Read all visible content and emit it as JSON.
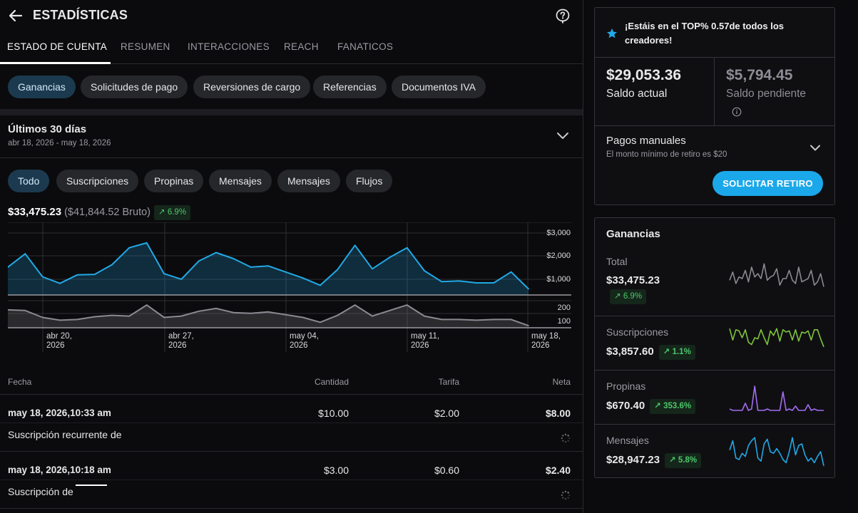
{
  "header": {
    "title": "ESTADÍSTICAS"
  },
  "tabs": [
    {
      "label": "ESTADO DE CUENTA"
    },
    {
      "label": "RESUMEN"
    },
    {
      "label": "INTERACCIONES"
    },
    {
      "label": "REACH"
    },
    {
      "label": "FANATICOS"
    }
  ],
  "sections": [
    {
      "label": "Ganancias",
      "selected": true
    },
    {
      "label": "Solicitudes de pago"
    },
    {
      "label": "Reversiones de cargo"
    },
    {
      "label": "Referencias"
    },
    {
      "label": "Documentos IVA"
    }
  ],
  "period": {
    "title": "Últimos 30 días",
    "range": "abr 18, 2026 - may 18, 2026"
  },
  "filters": [
    {
      "label": "Todo",
      "selected": true
    },
    {
      "label": "Suscripciones"
    },
    {
      "label": "Propinas"
    },
    {
      "label": "Mensajes"
    },
    {
      "label": "Mensajes"
    },
    {
      "label": "Flujos"
    }
  ],
  "summary": {
    "net": "$33,475.23",
    "gross": "($41,844.52 Bruto)",
    "change": "6.9%"
  },
  "chart_data": {
    "type": "area",
    "upper": {
      "y_ticks": [
        "$3,000",
        "$2,000",
        "$1,000"
      ],
      "ylim": [
        0,
        3000
      ],
      "values": [
        1150,
        1700,
        750,
        480,
        830,
        850,
        1250,
        1950,
        2150,
        880,
        650,
        1400,
        1750,
        1500,
        1150,
        1200,
        950,
        700,
        400,
        1050,
        2050,
        1080,
        1550,
        1950,
        1000,
        550,
        580,
        500,
        500,
        950,
        250
      ],
      "color": "#22a9e6"
    },
    "lower": {
      "y_ticks": [
        "200",
        "100"
      ],
      "ylim": [
        0,
        300
      ],
      "values": [
        130,
        125,
        75,
        55,
        60,
        80,
        90,
        85,
        165,
        75,
        85,
        120,
        140,
        110,
        105,
        115,
        95,
        75,
        40,
        90,
        165,
        85,
        125,
        165,
        85,
        60,
        60,
        55,
        60,
        60,
        15
      ],
      "color": "#8a8a90"
    },
    "x_labels": [
      {
        "day": "abr 20,",
        "year": "2026"
      },
      {
        "day": "abr 27,",
        "year": "2026"
      },
      {
        "day": "may 04,",
        "year": "2026"
      },
      {
        "day": "may 11,",
        "year": "2026"
      },
      {
        "day": "may 18,",
        "year": "2026"
      }
    ]
  },
  "table": {
    "headers": {
      "date": "Fecha",
      "amount": "Cantidad",
      "fee": "Tarifa",
      "net": "Neta"
    },
    "rows": [
      {
        "date": "may 18, 2026,10:33 am",
        "amount": "$10.00",
        "fee": "$2.00",
        "net": "$8.00",
        "desc": "Suscripción recurrente de"
      },
      {
        "date": "may 18, 2026,10:18 am",
        "amount": "$3.00",
        "fee": "$0.60",
        "net": "$2.40",
        "desc": "Suscripción de"
      }
    ]
  },
  "account": {
    "badge": "¡Estáis en el TOP% 0.57de todos los creadores!",
    "balance": {
      "amount": "$29,053.36",
      "label": "Saldo actual"
    },
    "pending": {
      "amount": "$5,794.45",
      "label": "Saldo pendiente"
    },
    "manual": {
      "title": "Pagos manuales",
      "note": "El monto mínimo de retiro es $20"
    },
    "withdraw_label": "SOLICITAR RETIRO"
  },
  "earnings": {
    "title": "Ganancias",
    "items": [
      {
        "label": "Total",
        "value": "$33,475.23",
        "change": "6.9%",
        "color": "#8a8a90",
        "spark": [
          0.45,
          0.7,
          0.35,
          0.55,
          0.5,
          0.75,
          0.4,
          0.85,
          0.55,
          0.65,
          0.5,
          0.95,
          0.45,
          0.55,
          0.6,
          0.8,
          0.3,
          0.5,
          0.5,
          0.75,
          0.45,
          0.35,
          0.85,
          0.4,
          0.45,
          0.5,
          0.75,
          0.3,
          0.4,
          0.65,
          0.25
        ]
      },
      {
        "label": "Suscripciones",
        "value": "$3,857.60",
        "change": "1.1%",
        "color": "#7fc43b",
        "spark": [
          0.9,
          0.4,
          0.85,
          0.8,
          0.5,
          0.85,
          0.3,
          0.2,
          0.5,
          0.45,
          0.85,
          0.5,
          0.2,
          0.8,
          0.6,
          0.9,
          0.35,
          0.85,
          0.75,
          0.8,
          0.4,
          0.85,
          0.35,
          0.75,
          0.7,
          0.8,
          0.4,
          0.85,
          0.85,
          0.45,
          0.1
        ]
      },
      {
        "label": "Propinas",
        "value": "$670.40",
        "change": "353.6%",
        "color": "#a36cf0",
        "spark": [
          0.15,
          0.1,
          0.1,
          0.1,
          0.1,
          0.35,
          0.1,
          0.15,
          0.95,
          0.1,
          0.1,
          0.1,
          0.15,
          0.1,
          0.1,
          0.1,
          0.1,
          0.75,
          0.1,
          0.15,
          0.1,
          0.25,
          0.1,
          0.1,
          0.1,
          0.3,
          0.1,
          0.15,
          0.1,
          0.1,
          0.1
        ]
      },
      {
        "label": "Mensajes",
        "value": "$28,947.23",
        "change": "5.8%",
        "color": "#22a9e6",
        "spark": [
          0.55,
          0.85,
          0.3,
          0.25,
          0.45,
          0.35,
          0.7,
          0.85,
          0.95,
          0.3,
          0.2,
          0.75,
          0.9,
          0.5,
          0.45,
          0.6,
          0.45,
          0.25,
          0.15,
          0.5,
          0.95,
          0.4,
          0.7,
          0.75,
          0.4,
          0.2,
          0.3,
          0.15,
          0.35,
          0.5,
          0.05
        ]
      }
    ]
  }
}
